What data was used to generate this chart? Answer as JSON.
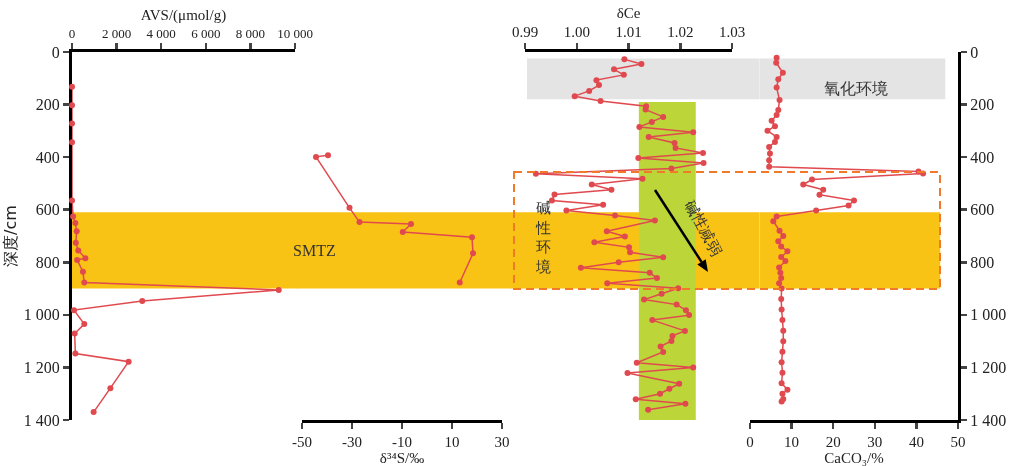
{
  "chart_data": [
    {
      "type": "line",
      "marker": "circle",
      "line_style": "solid",
      "grid": false,
      "xlabel": "AVS/(μmol/g)",
      "xlim": [
        0,
        10000
      ],
      "xticks": [
        0,
        {
          "value": 2000,
          "label": "2 000"
        },
        {
          "value": 4000,
          "label": "4 000"
        },
        {
          "value": 6000,
          "label": "6 000"
        },
        {
          "value": 8000,
          "label": "8 000"
        },
        {
          "value": 10000,
          "label": "10 000"
        }
      ],
      "ylabel": "深度/cm",
      "ylim": [
        1400,
        0
      ],
      "yticks": [
        0,
        200,
        400,
        600,
        800,
        {
          "value": 1000,
          "label": "1 000"
        },
        {
          "value": 1200,
          "label": "1 200"
        },
        {
          "value": 1400,
          "label": "1 400"
        }
      ],
      "series": [
        {
          "color": "#e04a4f",
          "x": [
            0,
            0,
            0,
            0,
            0,
            50,
            150,
            210,
            170,
            280,
            600,
            230,
            490,
            550,
            9270,
            3150,
            90,
            550,
            120,
            150,
            2540,
            1720,
            970
          ],
          "values": [
            132,
            203,
            272,
            343,
            565,
            626,
            651,
            682,
            726,
            755,
            785,
            791,
            836,
            877,
            905,
            947,
            982,
            1035,
            1071,
            1147,
            1178,
            1279,
            1370
          ]
        }
      ],
      "bands": [
        {
          "axis": "y",
          "from": 610,
          "to": 900,
          "color": "#f9c315"
        }
      ]
    },
    {
      "type": "line",
      "marker": "circle",
      "line_style": "solid",
      "grid": false,
      "tick_labels": "x",
      "xlabel": "δ³⁴S/‰",
      "xlim": [
        -50,
        30
      ],
      "xticks": [
        -50,
        -30,
        -10,
        10,
        30
      ],
      "ylim": [
        1400,
        0
      ],
      "series": [
        {
          "color": "#e04a4f",
          "x": [
            -39.6,
            -44.4,
            -31,
            -27,
            -6.4,
            -9.7,
            18,
            18.4,
            13.1
          ],
          "values": [
            393,
            399,
            593,
            647,
            654,
            685,
            705,
            766,
            877
          ]
        }
      ],
      "bands": [
        {
          "axis": "y",
          "from": 610,
          "to": 900,
          "label": "SMTZ",
          "color": "#f9c315"
        }
      ]
    },
    {
      "type": "line",
      "marker": "circle",
      "line_style": "solid",
      "grid": false,
      "tick_labels": "x",
      "xlabel": "δCe",
      "xlim": [
        0.99,
        1.03
      ],
      "xticks": [
        0.99,
        {
          "value": 1,
          "label": "1.00"
        },
        1.01,
        1.02,
        1.03
      ],
      "ylim": [
        1400,
        0
      ],
      "series": [
        {
          "color": "#e04a4f",
          "x": [
            1.0092,
            1.0125,
            1.0072,
            1.0091,
            1.0038,
            1.0043,
            1.0024,
            0.9996,
            1.0046,
            1.0134,
            1.0133,
            1.0167,
            1.0145,
            1.0121,
            1.0225,
            1.0139,
            1.0189,
            1.0191,
            1.0244,
            1.0119,
            1.0245,
            1.0183,
            0.9921,
            1.0127,
            1.0029,
            1.0067,
            0.9957,
            0.9952,
            1.0051,
            0.998,
            1.0074,
            1.0151,
            1.0058,
            1.0093,
            1.0034,
            1.0101,
            1.0103,
            1.0167,
            1.0081,
            1.0008,
            1.0141,
            1.0155,
            1.0059,
            1.0196,
            1.0164,
            1.013,
            1.0193,
            1.0211,
            1.0217,
            1.0146,
            1.0209,
            1.0185,
            1.0183,
            1.0162,
            1.0167,
            1.0116,
            1.0225,
            1.0098,
            1.0198,
            1.0179,
            1.0161,
            1.0114,
            1.021,
            1.0138
          ],
          "values": [
            28,
            46,
            66,
            87,
            107,
            126,
            148,
            168,
            186,
            206,
            219,
            247,
            266,
            285,
            305,
            323,
            346,
            365,
            384,
            403,
            422,
            443,
            463,
            482,
            504,
            524,
            542,
            565,
            581,
            603,
            622,
            641,
            682,
            702,
            724,
            743,
            762,
            781,
            800,
            821,
            840,
            860,
            880,
            899,
            920,
            942,
            961,
            982,
            1001,
            1020,
            1061,
            1080,
            1099,
            1120,
            1141,
            1182,
            1200,
            1221,
            1262,
            1281,
            1300,
            1321,
            1338,
            1361
          ]
        }
      ],
      "bands": [
        {
          "axis": "y",
          "from": 25,
          "to": 180,
          "color": "#e4e4e4"
        },
        {
          "axis": "y",
          "from": 610,
          "to": 900,
          "color": "#f9c315"
        },
        {
          "axis": "x",
          "from": 1.012,
          "to": 1.023,
          "color": "#bcd63a"
        }
      ],
      "annotations": [
        "碱性环境",
        "碱性减弱"
      ]
    },
    {
      "type": "line",
      "marker": "circle",
      "line_style": "solid",
      "grid": false,
      "xlabel": "CaCO₃/%",
      "xlim": [
        0,
        50
      ],
      "xticks": [
        0,
        10,
        20,
        30,
        40,
        50
      ],
      "ylim": [
        1400,
        0
      ],
      "yticks": [
        0,
        200,
        400,
        600,
        800,
        {
          "value": 1000,
          "label": "1 000"
        },
        {
          "value": 1200,
          "label": "1 200"
        },
        {
          "value": 1400,
          "label": "1 400"
        }
      ],
      "series": [
        {
          "color": "#e04a4f",
          "x": [
            6.4,
            6.3,
            7.9,
            6.8,
            6.4,
            7.1,
            6.8,
            6.4,
            5.2,
            6.0,
            4.2,
            6.4,
            6.0,
            4.6,
            4.8,
            4.6,
            4.6,
            40.5,
            41.6,
            14.9,
            12.8,
            17.6,
            16.7,
            25.0,
            23.7,
            15.9,
            6.4,
            5.6,
            7.1,
            8.0,
            6.8,
            7.5,
            9.0,
            7.5,
            8.5,
            7.0,
            7.3,
            7.5,
            7.0,
            7.6,
            7.5,
            7.6,
            7.8,
            8.0,
            8.0,
            7.8,
            7.6,
            7.8,
            7.6,
            9.0,
            7.8,
            8.0,
            7.6
          ],
          "values": [
            22,
            41,
            79,
            104,
            135,
            183,
            221,
            240,
            262,
            282,
            300,
            323,
            342,
            361,
            386,
            412,
            437,
            455,
            462,
            485,
            504,
            524,
            543,
            565,
            584,
            603,
            626,
            644,
            680,
            700,
            720,
            740,
            758,
            780,
            795,
            820,
            840,
            860,
            880,
            900,
            940,
            980,
            1020,
            1060,
            1100,
            1140,
            1180,
            1220,
            1260,
            1285,
            1300,
            1320,
            1330
          ]
        }
      ],
      "bands": [
        {
          "axis": "y",
          "from": 25,
          "to": 180,
          "label": "氧化环境",
          "color": "#e4e4e4"
        },
        {
          "axis": "y",
          "from": 610,
          "to": 900,
          "color": "#f9c315"
        }
      ]
    }
  ]
}
